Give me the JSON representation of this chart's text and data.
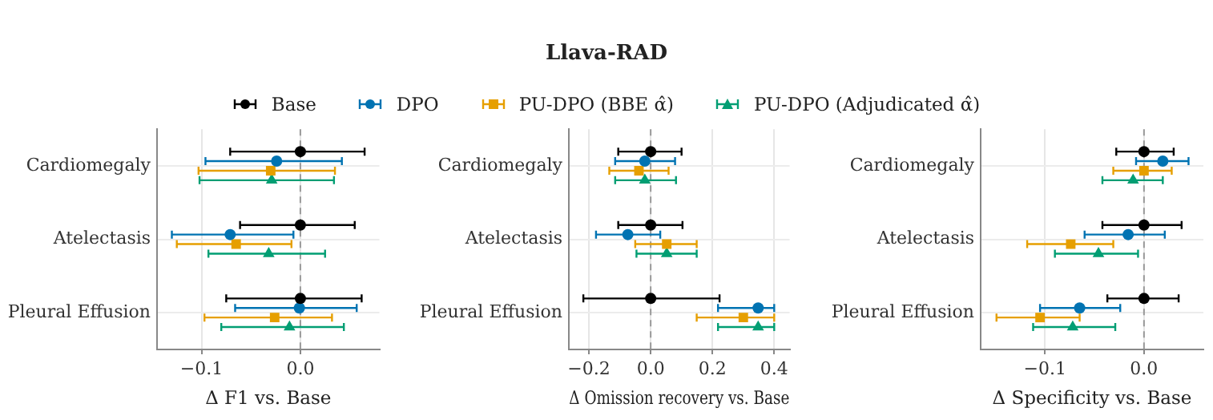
{
  "chart_data": [
    {
      "type": "scatter",
      "orientation": "horizontal",
      "xlabel": "Δ F1 vs. Base",
      "categories": [
        "Cardiomegaly",
        "Atelectasis",
        "Pleural Effusion"
      ],
      "xlim": [
        -0.145,
        0.08
      ],
      "xticks": [
        {
          "value": -0.1,
          "label": "−0.1"
        },
        {
          "value": 0,
          "label": "0.0"
        }
      ],
      "grid": true,
      "ref_lines": [
        {
          "axis": "x",
          "value": 0,
          "color": "#999999",
          "line_style": "dashed"
        }
      ],
      "series": [
        {
          "color": "#000000",
          "marker": "circle",
          "values": [
            0,
            0,
            0
          ],
          "errors": [
            [
              -0.071,
              0.065
            ],
            [
              -0.061,
              0.055
            ],
            [
              -0.075,
              0.062
            ]
          ]
        },
        {
          "color": "#0173b2",
          "marker": "circle",
          "values": [
            -0.024,
            -0.071,
            -0.001
          ],
          "errors": [
            [
              -0.096,
              0.042
            ],
            [
              -0.13,
              -0.007
            ],
            [
              -0.066,
              0.057
            ]
          ]
        },
        {
          "color": "#e69f00",
          "marker": "square",
          "values": [
            -0.03,
            -0.065,
            -0.026
          ],
          "errors": [
            [
              -0.103,
              0.035
            ],
            [
              -0.125,
              -0.009
            ],
            [
              -0.097,
              0.032
            ]
          ]
        },
        {
          "color": "#029e73",
          "marker": "triangle",
          "values": [
            -0.029,
            -0.032,
            -0.011
          ],
          "errors": [
            [
              -0.102,
              0.034
            ],
            [
              -0.093,
              0.025
            ],
            [
              -0.08,
              0.044
            ]
          ]
        }
      ]
    },
    {
      "type": "scatter",
      "orientation": "horizontal",
      "title": "Llava-RAD",
      "xlabel": "Δ Omission recovery vs. Base",
      "categories": [
        "Cardiomegaly",
        "Atelectasis",
        "Pleural Effusion"
      ],
      "xlim": [
        -0.265,
        0.45
      ],
      "xticks": [
        {
          "value": -0.2,
          "label": "−0.2"
        },
        {
          "value": 0,
          "label": "0.0"
        },
        {
          "value": 0.2,
          "label": "0.2"
        },
        {
          "value": 0.4,
          "label": "0.4"
        }
      ],
      "grid": true,
      "legend": "top",
      "ref_lines": [
        {
          "axis": "x",
          "value": 0,
          "color": "#999999",
          "line_style": "dashed"
        }
      ],
      "series": [
        {
          "name": "Base",
          "color": "#000000",
          "marker": "circle",
          "values": [
            0,
            0,
            0
          ],
          "errors": [
            [
              -0.105,
              0.1
            ],
            [
              -0.105,
              0.103
            ],
            [
              -0.218,
              0.223
            ]
          ]
        },
        {
          "name": "DPO",
          "color": "#0173b2",
          "marker": "circle",
          "values": [
            -0.019,
            -0.074,
            0.348
          ],
          "errors": [
            [
              -0.115,
              0.079
            ],
            [
              -0.177,
              0.031
            ],
            [
              0.218,
              0.4
            ]
          ]
        },
        {
          "name": "PU-DPO (BBE α̂)",
          "color": "#e69f00",
          "marker": "square",
          "values": [
            -0.038,
            0.052,
            0.3
          ],
          "errors": [
            [
              -0.134,
              0.058
            ],
            [
              -0.05,
              0.149
            ],
            [
              0.149,
              0.4
            ]
          ]
        },
        {
          "name": "PU-DPO (Adjudicated α̂)",
          "color": "#029e73",
          "marker": "triangle",
          "values": [
            -0.019,
            0.052,
            0.348
          ],
          "errors": [
            [
              -0.115,
              0.082
            ],
            [
              -0.046,
              0.149
            ],
            [
              0.218,
              0.4
            ]
          ]
        }
      ]
    },
    {
      "type": "scatter",
      "orientation": "horizontal",
      "xlabel": "Δ Specificity vs. Base",
      "categories": [
        "Cardiomegaly",
        "Atelectasis",
        "Pleural Effusion"
      ],
      "xlim": [
        -0.165,
        0.06
      ],
      "xticks": [
        {
          "value": -0.1,
          "label": "−0.1"
        },
        {
          "value": 0,
          "label": "0.0"
        }
      ],
      "grid": true,
      "ref_lines": [
        {
          "axis": "x",
          "value": 0,
          "color": "#999999",
          "line_style": "dashed"
        }
      ],
      "series": [
        {
          "color": "#000000",
          "marker": "circle",
          "values": [
            0,
            0,
            0
          ],
          "errors": [
            [
              -0.028,
              0.03
            ],
            [
              -0.042,
              0.038
            ],
            [
              -0.037,
              0.035
            ]
          ]
        },
        {
          "color": "#0173b2",
          "marker": "circle",
          "values": [
            0.019,
            -0.016,
            -0.065
          ],
          "errors": [
            [
              -0.008,
              0.045
            ],
            [
              -0.06,
              0.021
            ],
            [
              -0.105,
              -0.024
            ]
          ]
        },
        {
          "color": "#e69f00",
          "marker": "square",
          "values": [
            0,
            -0.074,
            -0.105
          ],
          "errors": [
            [
              -0.031,
              0.028
            ],
            [
              -0.118,
              -0.031
            ],
            [
              -0.149,
              -0.065
            ]
          ]
        },
        {
          "color": "#029e73",
          "marker": "triangle",
          "values": [
            -0.011,
            -0.046,
            -0.072
          ],
          "errors": [
            [
              -0.042,
              0.019
            ],
            [
              -0.09,
              -0.006
            ],
            [
              -0.112,
              -0.029
            ]
          ]
        }
      ]
    }
  ]
}
